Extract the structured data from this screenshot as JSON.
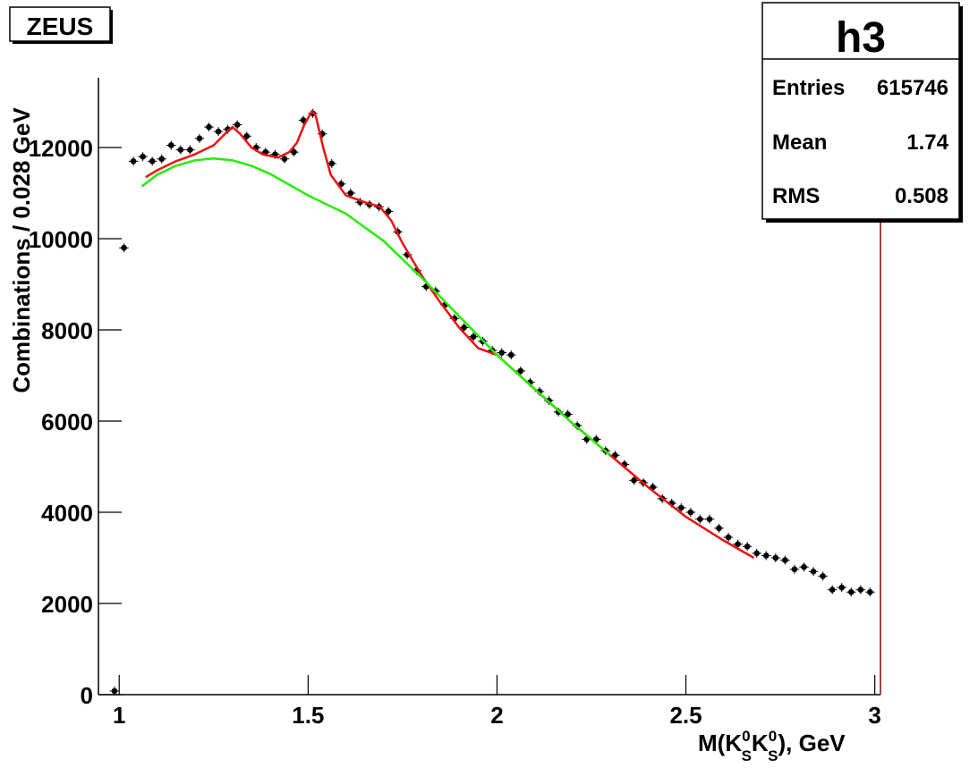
{
  "chart_data": {
    "type": "histogram-fit",
    "annotation": "ZEUS",
    "ylabel": "Combinations / 0.028 GeV",
    "xlabel": [
      "M(K",
      "0",
      "S",
      "K",
      "0",
      "S",
      "), GeV"
    ],
    "xlim": [
      0.945,
      3.015
    ],
    "ylim": [
      0,
      13530
    ],
    "xticks": [
      1,
      1.5,
      2,
      2.5,
      3
    ],
    "yticks": [
      0,
      2000,
      4000,
      6000,
      8000,
      10000,
      12000
    ],
    "stats": {
      "title": "h3",
      "rows": [
        [
          "Entries",
          "615746"
        ],
        [
          "Mean",
          "1.74"
        ],
        [
          "RMS",
          "0.508"
        ]
      ]
    },
    "series": [
      {
        "mode": "markers",
        "color": "#000000",
        "x": [
          0.9875,
          1.0125,
          1.0375,
          1.0625,
          1.0875,
          1.1125,
          1.1375,
          1.1625,
          1.1875,
          1.2125,
          1.2375,
          1.2625,
          1.2875,
          1.3125,
          1.3375,
          1.3625,
          1.3875,
          1.4125,
          1.4375,
          1.4625,
          1.4875,
          1.5125,
          1.5375,
          1.5625,
          1.5875,
          1.6125,
          1.6375,
          1.6625,
          1.6875,
          1.7125,
          1.7375,
          1.7625,
          1.7875,
          1.8125,
          1.8375,
          1.8625,
          1.8875,
          1.9125,
          1.9375,
          1.9625,
          1.9875,
          2.0125,
          2.0375,
          2.0625,
          2.0875,
          2.1125,
          2.1375,
          2.1625,
          2.1875,
          2.2125,
          2.2375,
          2.2625,
          2.2875,
          2.3125,
          2.3375,
          2.3625,
          2.3875,
          2.4125,
          2.4375,
          2.4625,
          2.4875,
          2.5125,
          2.5375,
          2.5625,
          2.5875,
          2.6125,
          2.6375,
          2.6625,
          2.6875,
          2.7125,
          2.7375,
          2.7625,
          2.7875,
          2.8125,
          2.8375,
          2.8625,
          2.8875,
          2.9125,
          2.9375,
          2.9625,
          2.9875
        ],
        "values": [
          80,
          9800,
          11700,
          11800,
          11700,
          11750,
          12050,
          11950,
          11950,
          12200,
          12450,
          12350,
          12400,
          12500,
          12250,
          12000,
          11900,
          11850,
          11750,
          11900,
          12600,
          12750,
          12300,
          11650,
          11200,
          11000,
          10800,
          10750,
          10700,
          10600,
          10150,
          9650,
          9300,
          8950,
          8850,
          8550,
          8250,
          8050,
          7850,
          7750,
          7550,
          7500,
          7450,
          7100,
          6850,
          6650,
          6450,
          6200,
          6150,
          5900,
          5600,
          5600,
          5350,
          5250,
          5050,
          4700,
          4650,
          4550,
          4300,
          4200,
          4100,
          4000,
          3850,
          3850,
          3650,
          3450,
          3300,
          3250,
          3100,
          3050,
          3000,
          2950,
          2750,
          2800,
          2700,
          2600,
          2300,
          2350,
          2250,
          2300,
          2250
        ]
      },
      {
        "mode": "line",
        "color": "#ee1111",
        "x": [
          1.07,
          1.1,
          1.15,
          1.2,
          1.25,
          1.28,
          1.3,
          1.32,
          1.35,
          1.38,
          1.42,
          1.45,
          1.47,
          1.49,
          1.51,
          1.52,
          1.54,
          1.56,
          1.6,
          1.65,
          1.69,
          1.72,
          1.75,
          1.8,
          1.85,
          1.9,
          1.95,
          2.0,
          2.1,
          2.2,
          2.3,
          2.4,
          2.5,
          2.6,
          2.68
        ],
        "values": [
          11350,
          11500,
          11700,
          11850,
          12050,
          12300,
          12450,
          12300,
          12000,
          11850,
          11780,
          11900,
          12100,
          12500,
          12800,
          12700,
          12000,
          11400,
          10950,
          10800,
          10700,
          10400,
          9900,
          9200,
          8600,
          8050,
          7600,
          7450,
          6700,
          5950,
          5250,
          4550,
          3900,
          3380,
          3000
        ]
      },
      {
        "mode": "line",
        "color": "#22ee00",
        "x": [
          1.06,
          1.1,
          1.15,
          1.2,
          1.25,
          1.3,
          1.35,
          1.4,
          1.5,
          1.6,
          1.7,
          1.8,
          1.9,
          2.0,
          2.1,
          2.2,
          2.3
        ],
        "values": [
          11150,
          11400,
          11600,
          11720,
          11760,
          11720,
          11600,
          11420,
          10950,
          10550,
          9950,
          9150,
          8300,
          7450,
          6700,
          5950,
          5250
        ]
      }
    ]
  }
}
